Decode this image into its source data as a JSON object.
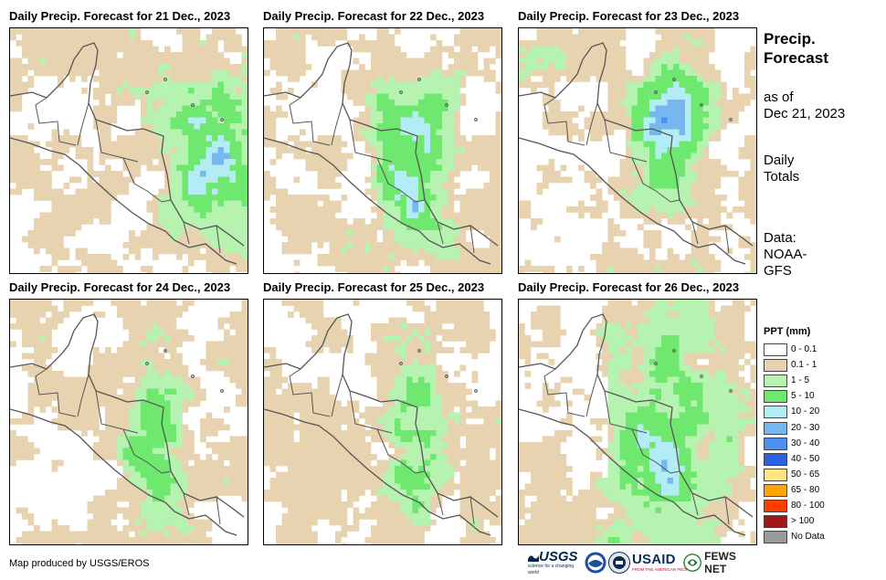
{
  "panels": [
    {
      "title": "Daily Precip. Forecast for 21 Dec., 2023"
    },
    {
      "title": "Daily Precip. Forecast for 22 Dec., 2023"
    },
    {
      "title": "Daily Precip. Forecast for 23 Dec., 2023"
    },
    {
      "title": "Daily Precip. Forecast for 24 Dec., 2023"
    },
    {
      "title": "Daily Precip. Forecast for 25 Dec., 2023"
    },
    {
      "title": "Daily Precip. Forecast for 26 Dec., 2023"
    }
  ],
  "side": {
    "title_line1": "Precip.",
    "title_line2": "Forecast",
    "asof_line1": "as of",
    "asof_line2": "Dec 21, 2023",
    "daily_line1": "Daily",
    "daily_line2": "Totals",
    "data_line1": "Data:",
    "data_line2": "NOAA-",
    "data_line3": "GFS"
  },
  "legend": {
    "title": "PPT (mm)",
    "items": [
      {
        "label": "0 - 0.1",
        "color": "#ffffff"
      },
      {
        "label": "0.1 - 1",
        "color": "#e8d3b0"
      },
      {
        "label": "1 - 5",
        "color": "#b6f2b0"
      },
      {
        "label": "5 - 10",
        "color": "#6ee86e"
      },
      {
        "label": "10 - 20",
        "color": "#b4ecf5"
      },
      {
        "label": "20 - 30",
        "color": "#77b7f0"
      },
      {
        "label": "30 - 40",
        "color": "#4e8ff0"
      },
      {
        "label": "40 - 50",
        "color": "#2a62e0"
      },
      {
        "label": "50 - 65",
        "color": "#ffe680"
      },
      {
        "label": "65 - 80",
        "color": "#ffa500"
      },
      {
        "label": "80 - 100",
        "color": "#ff3d00"
      },
      {
        "label": "> 100",
        "color": "#a01818"
      },
      {
        "label": "No Data",
        "color": "#9a9a9a"
      }
    ]
  },
  "credit": "Map produced by USGS/EROS",
  "logos": {
    "usgs": "USGS",
    "usgs_tagline": "science for a changing world",
    "usaid": "USAID",
    "usaid_tagline": "FROM THE AMERICAN PEOPLE",
    "fews": "FEWS NET"
  }
}
